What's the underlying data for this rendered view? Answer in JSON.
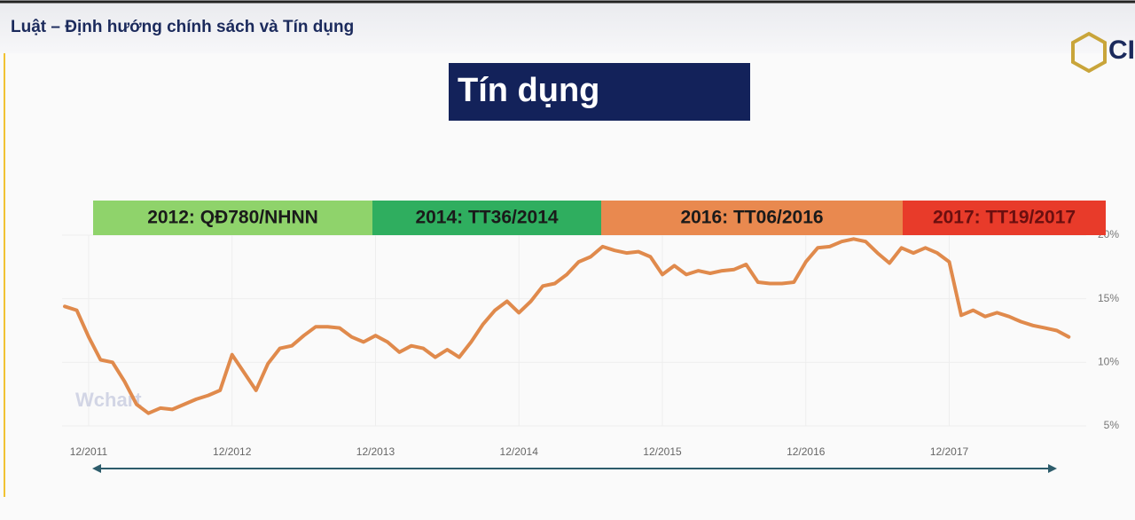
{
  "header": {
    "title": "Luật – Định hướng chính sách và Tín dụng",
    "logo_text": "CI"
  },
  "slide_title": "Tín dụng",
  "policies": [
    {
      "label": "2012: QĐ780/NHNN",
      "color": "#8fd36b"
    },
    {
      "label": "2014: TT36/2014",
      "color": "#2fae5f"
    },
    {
      "label": "2016: TT06/2016",
      "color": "#e9894f"
    },
    {
      "label": "2017: TT19/2017",
      "color": "#e83b2a"
    }
  ],
  "chart_data": {
    "type": "line",
    "color": "#e08a4c",
    "watermark": "Wchart",
    "x": [
      "10/2011",
      "11/2011",
      "12/2011",
      "01/2012",
      "02/2012",
      "03/2012",
      "04/2012",
      "05/2012",
      "06/2012",
      "07/2012",
      "08/2012",
      "09/2012",
      "10/2012",
      "11/2012",
      "12/2012",
      "01/2013",
      "02/2013",
      "03/2013",
      "04/2013",
      "05/2013",
      "06/2013",
      "07/2013",
      "08/2013",
      "09/2013",
      "10/2013",
      "11/2013",
      "12/2013",
      "01/2014",
      "02/2014",
      "03/2014",
      "04/2014",
      "05/2014",
      "06/2014",
      "07/2014",
      "08/2014",
      "09/2014",
      "10/2014",
      "11/2014",
      "12/2014",
      "01/2015",
      "02/2015",
      "03/2015",
      "04/2015",
      "05/2015",
      "06/2015",
      "07/2015",
      "08/2015",
      "09/2015",
      "10/2015",
      "11/2015",
      "12/2015",
      "01/2016",
      "02/2016",
      "03/2016",
      "04/2016",
      "05/2016",
      "06/2016",
      "07/2016",
      "08/2016",
      "09/2016",
      "10/2016",
      "11/2016",
      "12/2016",
      "01/2017",
      "02/2017",
      "03/2017",
      "04/2017",
      "05/2017",
      "06/2017",
      "07/2017",
      "08/2017",
      "09/2017",
      "10/2017",
      "11/2017",
      "12/2017",
      "01/2018",
      "02/2018",
      "03/2018",
      "04/2018",
      "05/2018",
      "06/2018",
      "07/2018",
      "08/2018",
      "09/2018",
      "10/2018"
    ],
    "values": [
      14.4,
      14.1,
      12.0,
      10.2,
      10.0,
      8.5,
      6.7,
      6.0,
      6.4,
      6.3,
      6.7,
      7.1,
      7.4,
      7.8,
      10.6,
      9.2,
      7.8,
      9.9,
      11.1,
      11.3,
      12.1,
      12.8,
      12.8,
      12.7,
      12.0,
      11.6,
      12.1,
      11.6,
      10.8,
      11.3,
      11.1,
      10.4,
      11.0,
      10.4,
      11.6,
      13.0,
      14.1,
      14.8,
      13.9,
      14.8,
      16.0,
      16.2,
      16.9,
      17.9,
      18.3,
      19.1,
      18.8,
      18.6,
      18.7,
      18.3,
      16.9,
      17.6,
      16.9,
      17.2,
      17.0,
      17.2,
      17.3,
      17.7,
      16.3,
      16.2,
      16.2,
      16.3,
      17.9,
      19.0,
      19.1,
      19.5,
      19.7,
      19.5,
      18.6,
      17.8,
      19.0,
      18.6,
      19.0,
      18.6,
      17.9,
      13.7,
      14.1,
      13.6,
      13.9,
      13.6,
      13.2,
      12.9,
      12.7,
      12.5,
      12.0
    ],
    "xticks": [
      "12/2011",
      "12/2012",
      "12/2013",
      "12/2014",
      "12/2015",
      "12/2016",
      "12/2017"
    ],
    "ylim": [
      5,
      20
    ],
    "yticks": [
      {
        "value": 5,
        "label": "5%"
      },
      {
        "value": 10,
        "label": "10%"
      },
      {
        "value": 15,
        "label": "15%"
      },
      {
        "value": 20,
        "label": "20%"
      }
    ],
    "grid": true
  }
}
